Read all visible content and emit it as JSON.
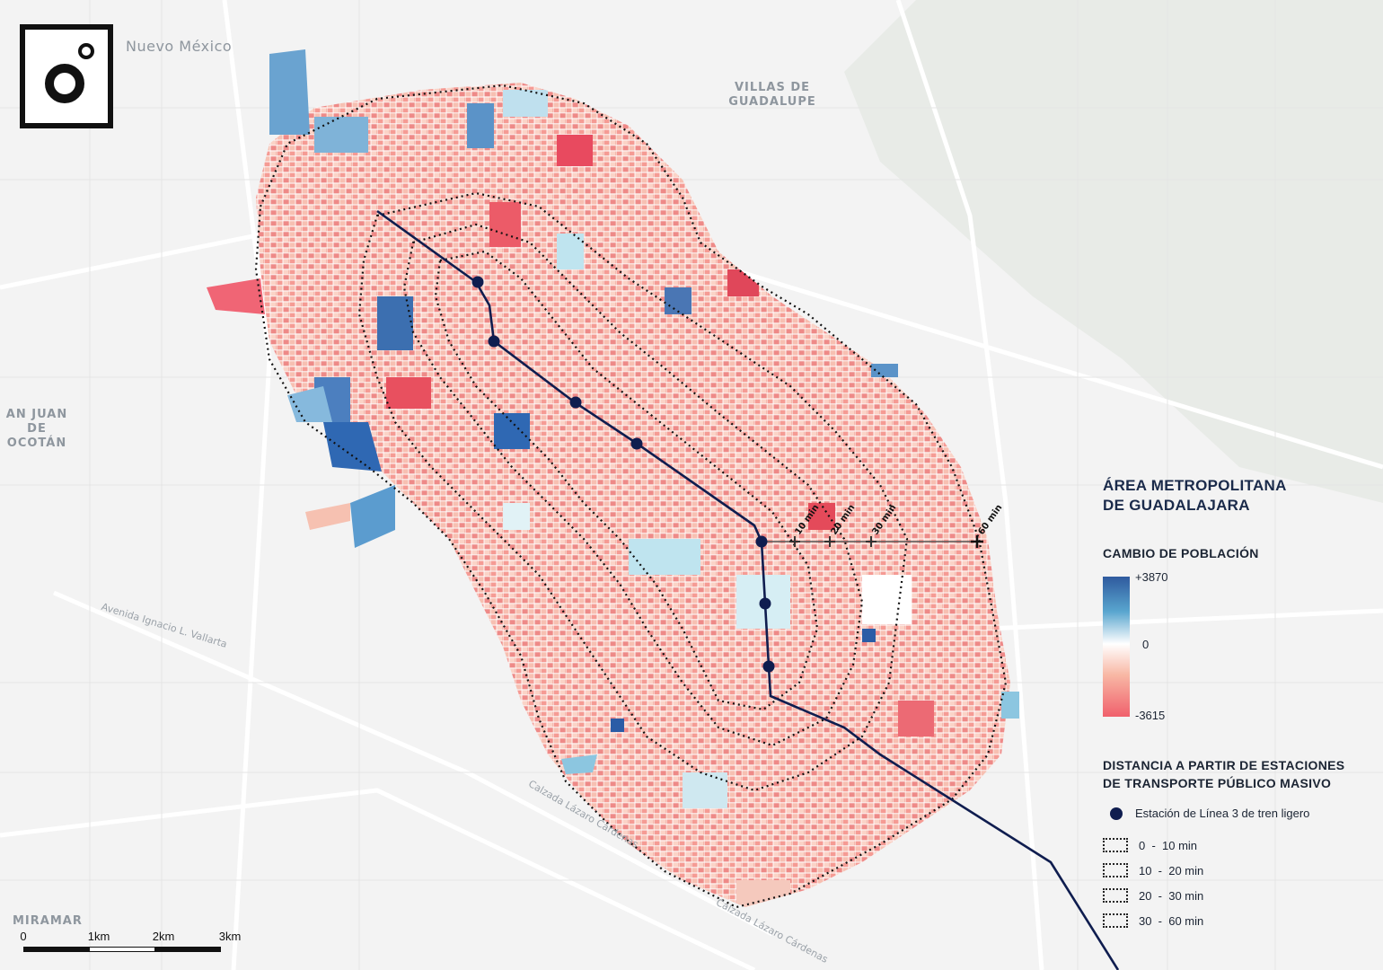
{
  "basemap_labels": [
    {
      "id": "nuevo-mexico",
      "text": "Nuevo México"
    },
    {
      "id": "villas-de-guadalupe",
      "text": "VILLAS DE GUADALUPE"
    },
    {
      "id": "san-juan-de-ocotan",
      "text": "AN JUAN DE OCOTÁN"
    },
    {
      "id": "miramar",
      "text": "MIRAMAR"
    }
  ],
  "road_labels": [
    {
      "id": "avenida-vallarta",
      "text": "Avenida Ignacio L. Vallarta"
    },
    {
      "id": "calzada-lazaro-1",
      "text": "Calzada Lázaro Cárdenas"
    },
    {
      "id": "calzada-lazaro-2",
      "text": "Calzada Lázaro Cárdenas"
    }
  ],
  "ring_labels": [
    "10 min",
    "20 min",
    "30 min",
    "60 min"
  ],
  "legend": {
    "title_line1": "ÁREA METROPOLITANA",
    "title_line2": "DE GUADALAJARA",
    "population_title": "CAMBIO DE POBLACIÓN",
    "max_value": "+3870",
    "mid_value": "0",
    "min_value": "-3615",
    "distance_title_line1": "DISTANCIA A PARTIR DE ESTACIONES",
    "distance_title_line2": "DE TRANSPORTE PÚBLICO MASIVO",
    "station_label": "Estación de Línea 3 de tren ligero",
    "distance_bands": [
      "0  -  10 min",
      "10  -  20 min",
      "20  -  30 min",
      "30  -  60 min"
    ]
  },
  "scale": {
    "labels": [
      "0",
      "1km",
      "2km",
      "3km"
    ]
  },
  "colors": {
    "increase": "#2f5a9e",
    "neutral": "#ffffff",
    "decrease": "#f0606c",
    "line": "#0f1d4f"
  }
}
